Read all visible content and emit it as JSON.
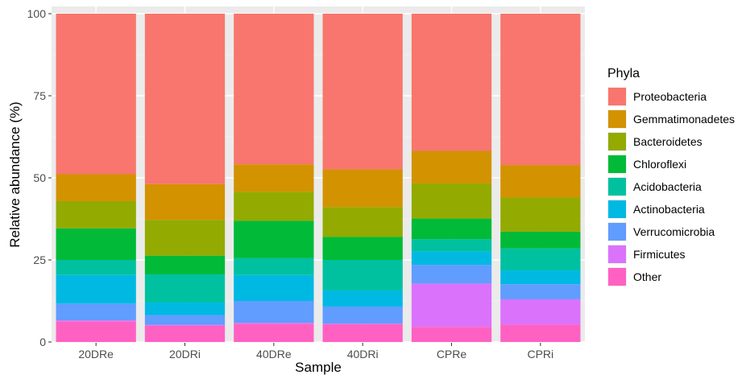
{
  "chart_data": {
    "type": "bar",
    "stacked": true,
    "xlabel": "Sample",
    "ylabel": "Relative abundance (%)",
    "ylim": [
      0,
      100
    ],
    "yticks": [
      0,
      25,
      50,
      75,
      100
    ],
    "grid": true,
    "legend_position": "right",
    "legend_title": "Phyla",
    "categories": [
      "20DRe",
      "20DRi",
      "40DRe",
      "40DRi",
      "CPRe",
      "CPRi"
    ],
    "series": [
      {
        "name": "Other",
        "color": "#FF61C3",
        "values": [
          6.3,
          5.0,
          5.6,
          5.4,
          4.6,
          5.3
        ]
      },
      {
        "name": "Firmicutes",
        "color": "#DB72FB",
        "values": [
          0.3,
          0.2,
          0.2,
          0.2,
          13.2,
          7.7
        ]
      },
      {
        "name": "Verrucomicrobia",
        "color": "#619CFF",
        "values": [
          5.1,
          3.0,
          6.7,
          5.2,
          5.7,
          4.6
        ]
      },
      {
        "name": "Actinobacteria",
        "color": "#00B9E3",
        "values": [
          8.7,
          3.8,
          7.9,
          4.9,
          4.1,
          4.2
        ]
      },
      {
        "name": "Acidobacteria",
        "color": "#00C19F",
        "values": [
          4.6,
          8.6,
          5.2,
          9.3,
          3.7,
          6.7
        ]
      },
      {
        "name": "Chloroflexi",
        "color": "#00BA38",
        "values": [
          9.6,
          5.7,
          11.3,
          7.0,
          6.3,
          5.1
        ]
      },
      {
        "name": "Bacteroidetes",
        "color": "#93AA00",
        "values": [
          8.3,
          10.9,
          8.9,
          9.1,
          10.7,
          10.4
        ]
      },
      {
        "name": "Gemmatimonadetes",
        "color": "#D39200",
        "values": [
          8.2,
          10.9,
          8.3,
          11.5,
          9.9,
          9.9
        ]
      },
      {
        "name": "Proteobacteria",
        "color": "#F8766D",
        "values": [
          48.9,
          51.9,
          45.9,
          47.4,
          41.8,
          46.1
        ]
      }
    ],
    "legend_order": [
      "Proteobacteria",
      "Gemmatimonadetes",
      "Bacteroidetes",
      "Chloroflexi",
      "Acidobacteria",
      "Actinobacteria",
      "Verrucomicrobia",
      "Firmicutes",
      "Other"
    ]
  }
}
